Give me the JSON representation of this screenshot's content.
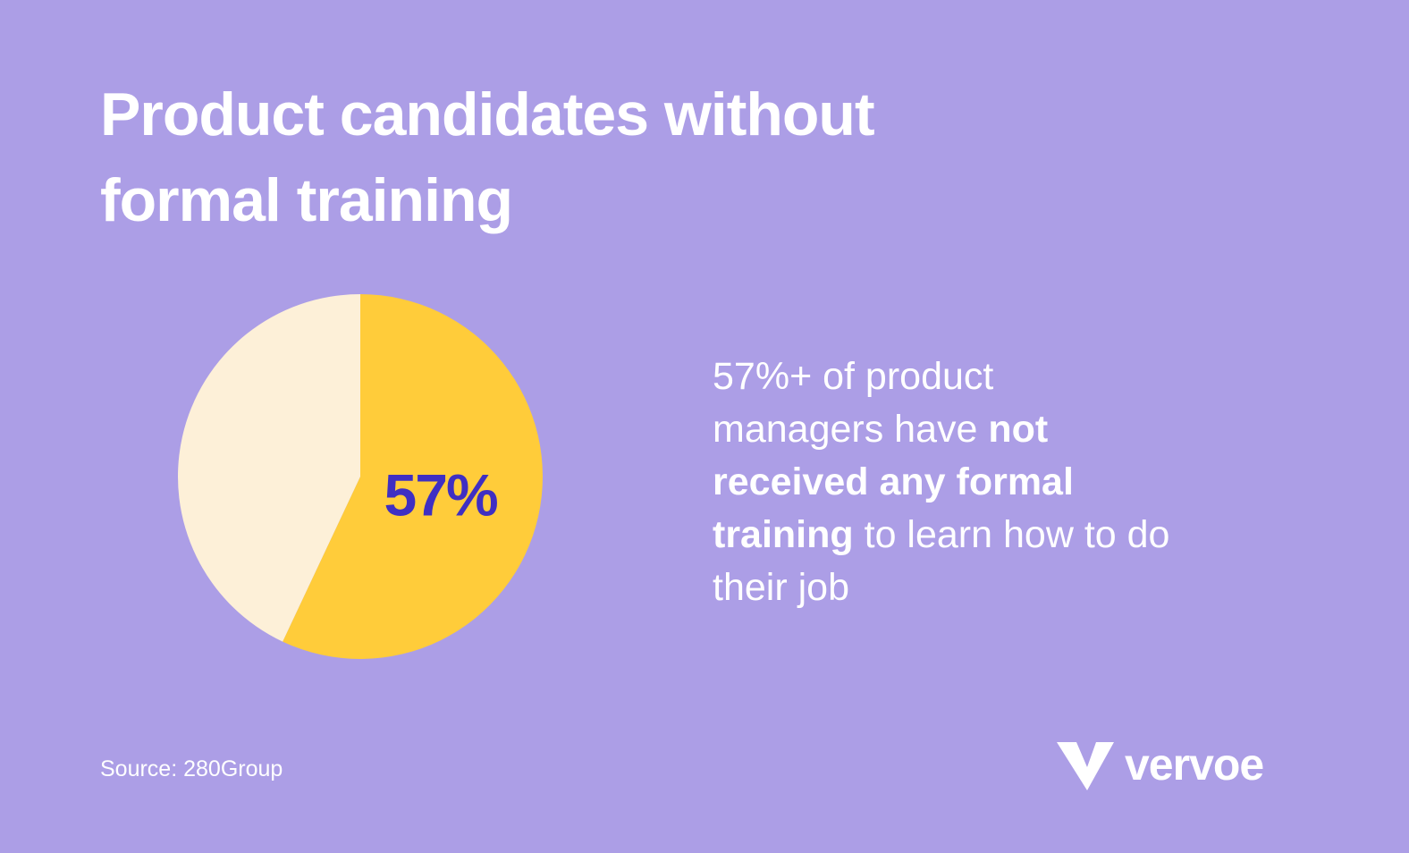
{
  "chart_data": {
    "type": "pie",
    "title": "Product candidates without formal training",
    "categories": [
      null,
      null
    ],
    "values": [
      57,
      43
    ],
    "value_labels": [
      "57%",
      null
    ],
    "colors": [
      "#ffcc3a",
      "#fdf0d8"
    ],
    "label_color": "#3f2fc2"
  },
  "description": {
    "lines": [
      [
        {
          "text": "57%+ of product",
          "bold": false
        }
      ],
      [
        {
          "text": "managers have ",
          "bold": false
        },
        {
          "text": "not",
          "bold": true
        }
      ],
      [
        {
          "text": "received any formal",
          "bold": true
        }
      ],
      [
        {
          "text": "training",
          "bold": true
        },
        {
          "text": " to learn how to do",
          "bold": false
        }
      ],
      [
        {
          "text": "their job",
          "bold": false
        }
      ]
    ]
  },
  "source": "Source: 280Group",
  "logo": "vervoe"
}
